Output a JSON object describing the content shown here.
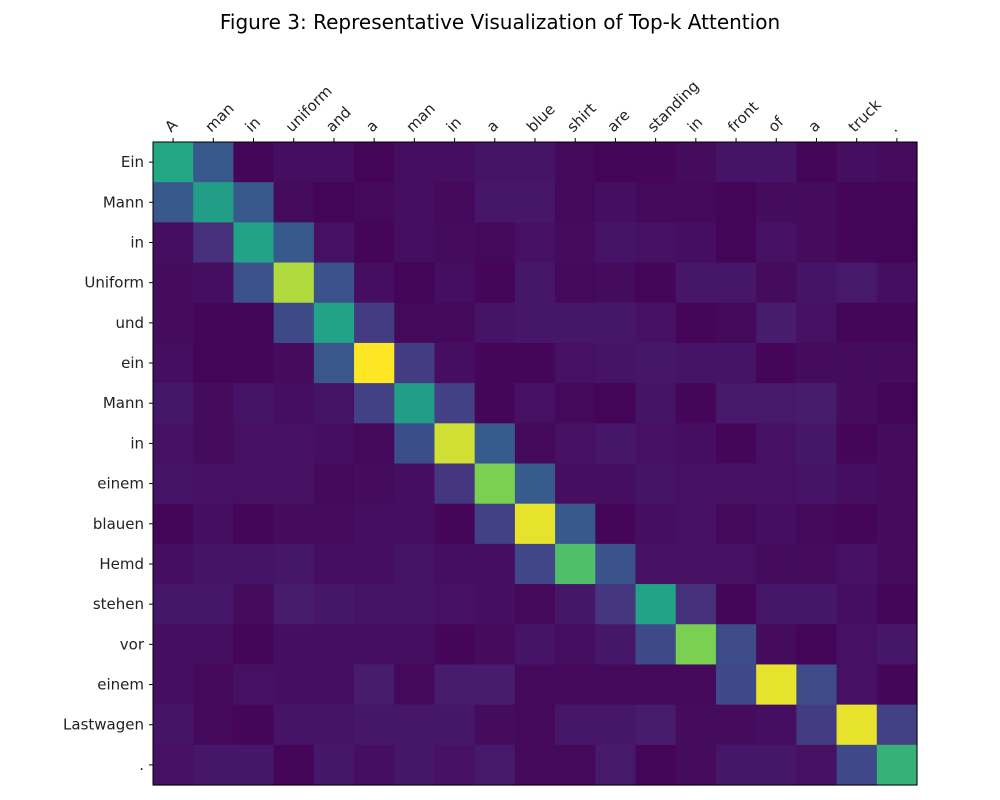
{
  "chart_data": {
    "type": "heatmap",
    "title": "Figure 3: Representative Visualization of Top-k Attention",
    "xlabel": "",
    "ylabel": "",
    "x_labels": [
      "A",
      "man",
      "in",
      "uniform",
      "and",
      "a",
      "man",
      "in",
      "a",
      "blue",
      "shirt",
      "are",
      "standing",
      "in",
      "front",
      "of",
      "a",
      "truck",
      "."
    ],
    "y_labels": [
      "Ein",
      "Mann",
      "in",
      "Uniform",
      "und",
      "ein",
      "Mann",
      "in",
      "einem",
      "blauen",
      "Hemd",
      "stehen",
      "vor",
      "einem",
      "Lastwagen",
      "."
    ],
    "x_axis_position": "top",
    "colormap": "viridis",
    "grid": false,
    "values": [
      [
        0.75,
        0.35,
        0.02,
        0.05,
        0.05,
        0.01,
        0.05,
        0.05,
        0.07,
        0.07,
        0.03,
        0.01,
        0.02,
        0.04,
        0.07,
        0.07,
        0.01,
        0.05,
        0.04
      ],
      [
        0.35,
        0.7,
        0.35,
        0.04,
        0.01,
        0.03,
        0.05,
        0.03,
        0.08,
        0.08,
        0.03,
        0.05,
        0.03,
        0.03,
        0.01,
        0.04,
        0.04,
        0.01,
        0.02
      ],
      [
        0.05,
        0.17,
        0.72,
        0.35,
        0.06,
        0.02,
        0.05,
        0.04,
        0.03,
        0.06,
        0.04,
        0.07,
        0.06,
        0.05,
        0.01,
        0.06,
        0.04,
        0.02,
        0.01
      ],
      [
        0.04,
        0.05,
        0.32,
        0.93,
        0.32,
        0.05,
        0.01,
        0.05,
        0.02,
        0.08,
        0.03,
        0.04,
        0.02,
        0.08,
        0.08,
        0.04,
        0.07,
        0.09,
        0.05
      ],
      [
        0.04,
        0.02,
        0.01,
        0.28,
        0.72,
        0.22,
        0.03,
        0.03,
        0.07,
        0.08,
        0.08,
        0.08,
        0.06,
        0.01,
        0.03,
        0.1,
        0.06,
        0.02,
        0.02
      ],
      [
        0.05,
        0.01,
        0.02,
        0.04,
        0.34,
        1.0,
        0.22,
        0.05,
        0.02,
        0.02,
        0.06,
        0.07,
        0.08,
        0.07,
        0.07,
        0.02,
        0.04,
        0.04,
        0.04
      ],
      [
        0.08,
        0.04,
        0.07,
        0.05,
        0.07,
        0.24,
        0.7,
        0.24,
        0.02,
        0.06,
        0.03,
        0.01,
        0.07,
        0.02,
        0.09,
        0.09,
        0.1,
        0.04,
        0.01
      ],
      [
        0.06,
        0.04,
        0.06,
        0.06,
        0.05,
        0.03,
        0.3,
        0.96,
        0.36,
        0.03,
        0.06,
        0.08,
        0.06,
        0.05,
        0.02,
        0.06,
        0.08,
        0.02,
        0.04
      ],
      [
        0.07,
        0.06,
        0.06,
        0.06,
        0.03,
        0.04,
        0.05,
        0.2,
        0.88,
        0.36,
        0.05,
        0.05,
        0.07,
        0.06,
        0.06,
        0.06,
        0.07,
        0.05,
        0.04
      ],
      [
        0.02,
        0.05,
        0.02,
        0.04,
        0.04,
        0.05,
        0.05,
        0.02,
        0.24,
        0.98,
        0.35,
        0.02,
        0.05,
        0.06,
        0.03,
        0.05,
        0.03,
        0.02,
        0.04
      ],
      [
        0.05,
        0.07,
        0.07,
        0.08,
        0.05,
        0.05,
        0.07,
        0.05,
        0.05,
        0.26,
        0.82,
        0.32,
        0.06,
        0.06,
        0.06,
        0.04,
        0.04,
        0.06,
        0.04
      ],
      [
        0.08,
        0.08,
        0.04,
        0.1,
        0.08,
        0.07,
        0.07,
        0.06,
        0.05,
        0.03,
        0.08,
        0.2,
        0.72,
        0.17,
        0.02,
        0.08,
        0.08,
        0.05,
        0.02
      ],
      [
        0.05,
        0.05,
        0.02,
        0.05,
        0.05,
        0.05,
        0.05,
        0.02,
        0.04,
        0.07,
        0.05,
        0.08,
        0.28,
        0.88,
        0.29,
        0.04,
        0.01,
        0.06,
        0.08
      ],
      [
        0.05,
        0.03,
        0.06,
        0.05,
        0.05,
        0.1,
        0.03,
        0.1,
        0.1,
        0.03,
        0.03,
        0.03,
        0.03,
        0.03,
        0.27,
        0.98,
        0.29,
        0.06,
        0.02
      ],
      [
        0.07,
        0.03,
        0.02,
        0.07,
        0.07,
        0.08,
        0.08,
        0.08,
        0.04,
        0.03,
        0.08,
        0.08,
        0.1,
        0.04,
        0.04,
        0.05,
        0.22,
        0.98,
        0.24
      ],
      [
        0.06,
        0.08,
        0.08,
        0.02,
        0.08,
        0.05,
        0.08,
        0.06,
        0.09,
        0.03,
        0.03,
        0.09,
        0.02,
        0.04,
        0.08,
        0.08,
        0.06,
        0.27,
        0.78
      ]
    ]
  }
}
